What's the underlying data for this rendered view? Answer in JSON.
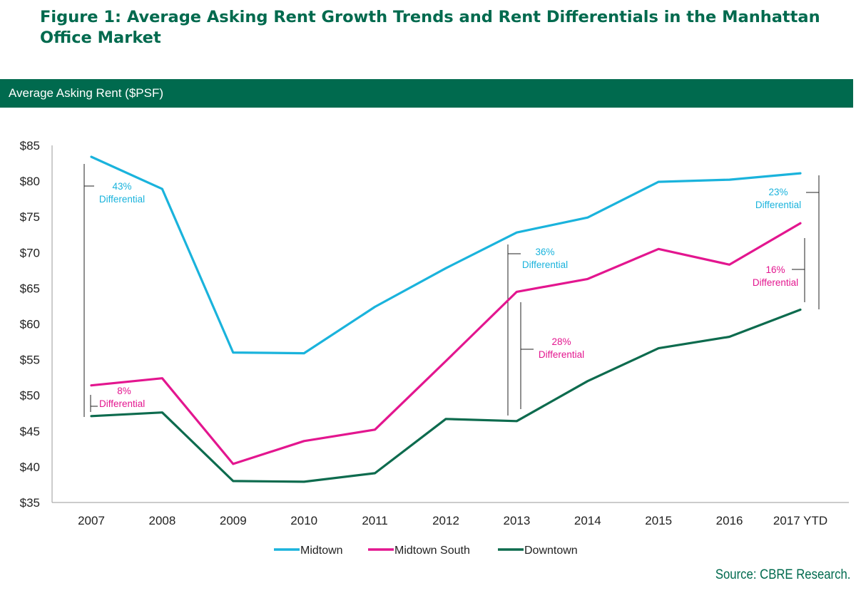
{
  "figure": {
    "title": "Figure 1: Average Asking Rent Growth Trends and Rent Differentials in the Manhattan Office Market",
    "band_label": "Average Asking Rent ($PSF)",
    "source": "Source: CBRE Research."
  },
  "colors": {
    "brand_green": "#006a4e",
    "midtown": "#1ab3dc",
    "midtown_south": "#e3168f",
    "downtown": "#0d6b4e"
  },
  "chart_data": {
    "type": "line",
    "title": "Average Asking Rent ($PSF)",
    "xlabel": "",
    "ylabel": "",
    "x": [
      "2007",
      "2008",
      "2009",
      "2010",
      "2011",
      "2012",
      "2013",
      "2014",
      "2015",
      "2016",
      "2017 YTD"
    ],
    "ylim": [
      35,
      85
    ],
    "ytick_values": [
      35,
      40,
      45,
      50,
      55,
      60,
      65,
      70,
      75,
      80,
      85
    ],
    "ytick_labels": [
      "$35",
      "$40",
      "$45",
      "$50",
      "$55",
      "$60",
      "$65",
      "$70",
      "$75",
      "$80",
      "$85"
    ],
    "grid": false,
    "legend_position": "bottom",
    "series": [
      {
        "name": "Midtown",
        "color": "#1ab3dc",
        "values": [
          83.4,
          78.9,
          56.0,
          55.9,
          62.4,
          67.8,
          72.8,
          74.9,
          79.9,
          80.2,
          81.1
        ]
      },
      {
        "name": "Midtown South",
        "color": "#e3168f",
        "values": [
          51.4,
          52.4,
          40.4,
          43.6,
          45.2,
          54.8,
          64.5,
          66.3,
          70.5,
          68.3,
          74.1
        ]
      },
      {
        "name": "Downtown",
        "color": "#0d6b4e",
        "values": [
          47.1,
          47.6,
          38.0,
          37.9,
          39.1,
          46.7,
          46.4,
          52.0,
          56.6,
          58.2,
          62.0
        ]
      }
    ],
    "annotations": [
      {
        "id": "ann-2007-midtown",
        "pct": "43%",
        "label": "Differential",
        "color": "#1ab3dc"
      },
      {
        "id": "ann-2007-midtown-south",
        "pct": "8%",
        "label": "Differential",
        "color": "#e3168f"
      },
      {
        "id": "ann-2013-midtown",
        "pct": "36%",
        "label": "Differential",
        "color": "#1ab3dc"
      },
      {
        "id": "ann-2013-midtown-south",
        "pct": "28%",
        "label": "Differential",
        "color": "#e3168f"
      },
      {
        "id": "ann-2017-midtown",
        "pct": "23%",
        "label": "Differential",
        "color": "#1ab3dc"
      },
      {
        "id": "ann-2017-midtown-south",
        "pct": "16%",
        "label": "Differential",
        "color": "#e3168f"
      }
    ]
  }
}
